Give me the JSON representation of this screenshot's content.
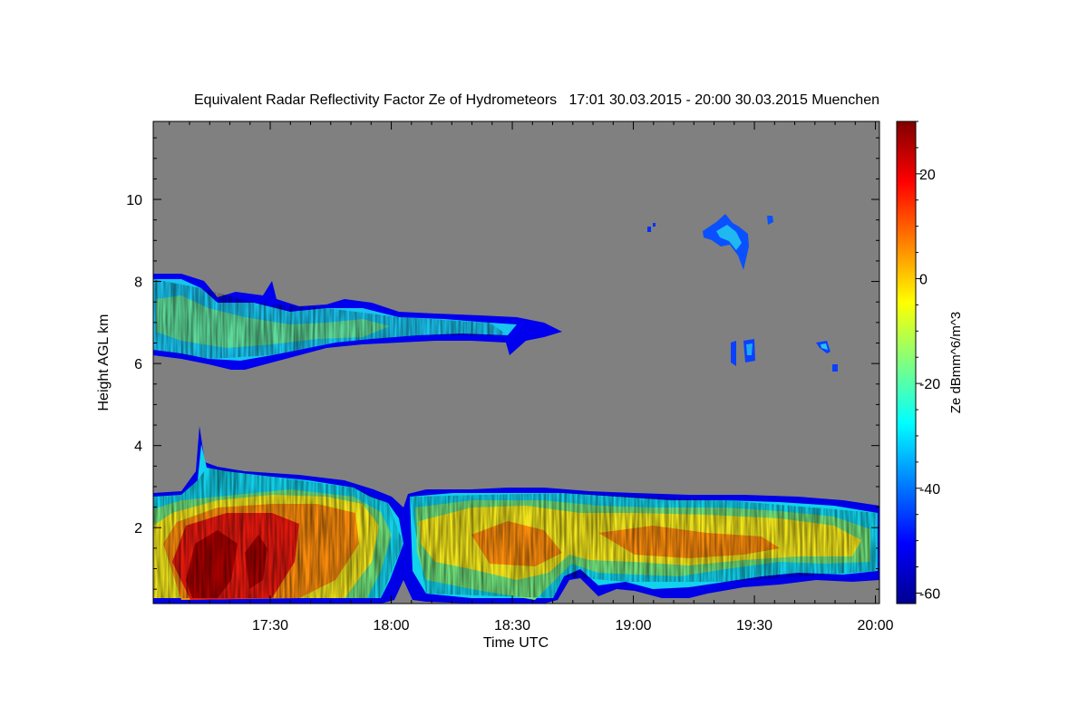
{
  "chart_data": {
    "type": "heatmap",
    "title": "Equivalent Radar Reflectivity Factor Ze of Hydrometeors   17:01 30.03.2015 - 20:00 30.03.2015 Muenchen",
    "xlabel": "Time UTC",
    "ylabel": "Height AGL km",
    "colorbar_label": "Ze dBmm^6/m^3",
    "xlim_minutes_utc": [
      1021,
      1201
    ],
    "x_ticks": [
      {
        "minutes": 1050,
        "label": "17:30"
      },
      {
        "minutes": 1080,
        "label": "18:00"
      },
      {
        "minutes": 1110,
        "label": "18:30"
      },
      {
        "minutes": 1140,
        "label": "19:00"
      },
      {
        "minutes": 1170,
        "label": "19:30"
      },
      {
        "minutes": 1200,
        "label": "20:00"
      }
    ],
    "ylim_km": [
      0.15,
      11.9
    ],
    "y_ticks": [
      2,
      4,
      6,
      8,
      10
    ],
    "y_tick_labels": [
      "2",
      "4",
      "6",
      "8",
      "10"
    ],
    "zlim_dbz": [
      -62,
      30
    ],
    "colorbar_ticks": [
      20,
      0,
      -20,
      -40,
      -60
    ],
    "colorbar_tick_labels": [
      "20",
      "0",
      "-20",
      "-40",
      "-60"
    ],
    "colormap": [
      "#00008f",
      "#0000ff",
      "#00ffff",
      "#ffff00",
      "#ff0000",
      "#800000"
    ],
    "background_color": "#808080",
    "echo_regions": [
      {
        "name": "lower precipitation layer",
        "time_start": "17:01",
        "time_end": "20:00",
        "base_km": 0.2,
        "top_km_approx": 2.9,
        "max_top_km": 4.6,
        "max_ze_dbz_approx": 25
      },
      {
        "name": "mid-level cloud layer",
        "time_start": "17:01",
        "time_end": "18:43",
        "base_km_approx": 6.1,
        "top_km_approx": 8.2,
        "ze_dbz_range": [
          -45,
          -20
        ]
      },
      {
        "name": "high ice cloud",
        "time_start": "19:20",
        "time_end": "19:34",
        "base_km_approx": 8.4,
        "top_km_approx": 9.7,
        "ze_dbz_range": [
          -45,
          -25
        ]
      },
      {
        "name": "isolated mid-level echoes",
        "time_start": "19:23",
        "time_end": "19:48",
        "base_km_approx": 5.9,
        "top_km_approx": 6.7,
        "ze_dbz_range": [
          -50,
          -30
        ]
      }
    ]
  }
}
